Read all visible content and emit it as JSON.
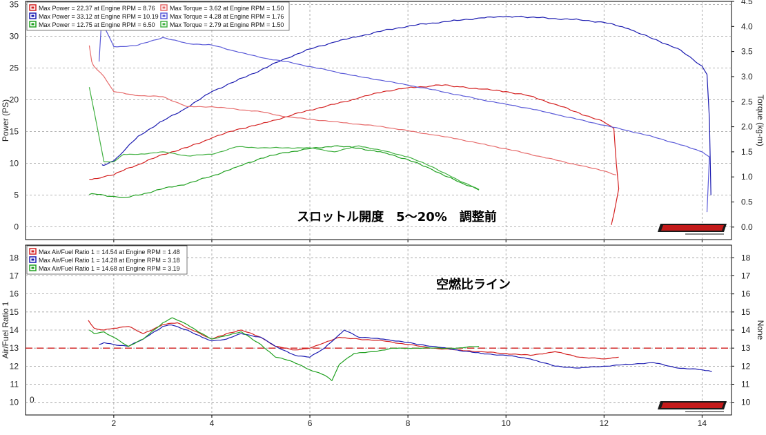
{
  "chart_data": [
    {
      "type": "line",
      "annotation": "スロットル開度　5～20%　調整前",
      "ylabel_left": "Power (PS)",
      "ylabel_right": "Torque (kg-m)",
      "xlim": [
        0.2,
        14.6
      ],
      "ylim_left": [
        -2,
        35.5
      ],
      "ylim_right": [
        -0.25,
        4.5
      ],
      "grid": true,
      "legend_position": "top-left",
      "x_ticks": [
        2,
        4,
        6,
        8,
        10,
        12,
        14
      ],
      "y_ticks_left": [
        0,
        5,
        10,
        15,
        20,
        25,
        30,
        35
      ],
      "y_ticks_right": [
        0,
        0.5,
        1.0,
        1.5,
        2.0,
        2.5,
        3.0,
        3.5,
        4.0,
        4.5
      ],
      "legend": [
        "Max Power = 22.37 at Engine RPM = 8.76",
        "Max Power = 33.12 at Engine RPM = 10.19",
        "Max Power = 12.75 at Engine RPM = 6.50",
        "Max Torque = 3.62 at Engine RPM = 1.50",
        "Max Torque = 4.28 at Engine RPM = 1.76",
        "Max Torque = 2.79 at Engine RPM = 1.50"
      ],
      "series": [
        {
          "color": "#d42020",
          "axis": "left",
          "style": "power",
          "x": [
            1.5,
            1.6,
            1.8,
            2.0,
            2.2,
            2.5,
            3.0,
            3.5,
            4.0,
            4.5,
            5.0,
            5.5,
            6.0,
            6.5,
            7.0,
            7.5,
            8.0,
            8.5,
            8.76,
            9.0,
            9.5,
            10.0,
            10.5,
            11.0,
            11.5,
            12.0,
            12.2,
            12.25,
            12.3,
            12.2,
            12.15
          ],
          "y": [
            7.5,
            7.6,
            7.9,
            8.2,
            8.9,
            9.8,
            11.4,
            12.5,
            14.0,
            15.3,
            16.2,
            17.3,
            18.4,
            19.3,
            20.3,
            21.3,
            21.9,
            22.2,
            22.37,
            22.1,
            21.7,
            21.3,
            20.6,
            19.3,
            17.9,
            16.5,
            15.5,
            10,
            6,
            2,
            0.3
          ]
        },
        {
          "color": "#1a1ab0",
          "axis": "left",
          "style": "power",
          "x": [
            1.76,
            1.8,
            2.0,
            2.2,
            2.5,
            3.0,
            3.5,
            4.0,
            4.5,
            5.0,
            5.5,
            6.0,
            6.5,
            7.0,
            7.5,
            8.0,
            8.5,
            9.0,
            9.5,
            10.0,
            10.19,
            10.5,
            11.0,
            11.5,
            12.0,
            12.5,
            13.0,
            13.5,
            14.0,
            14.1,
            14.15,
            14.18
          ],
          "y": [
            9.8,
            9.7,
            10.4,
            11.9,
            14.3,
            16.7,
            18.8,
            21.3,
            23.0,
            24.7,
            26.5,
            28.0,
            29.1,
            30.0,
            30.9,
            31.6,
            32.1,
            32.5,
            32.9,
            33.1,
            33.12,
            33.0,
            32.8,
            32.6,
            32.2,
            31.2,
            29.6,
            28.1,
            25.3,
            24,
            17,
            5
          ]
        },
        {
          "color": "#20a020",
          "axis": "left",
          "style": "power",
          "x": [
            1.5,
            1.6,
            1.8,
            2.0,
            2.2,
            2.5,
            3.0,
            3.5,
            4.0,
            4.5,
            5.0,
            5.5,
            6.0,
            6.5,
            7.0,
            7.5,
            8.0,
            8.5,
            9.0,
            9.45
          ],
          "y": [
            5.1,
            5.2,
            5.0,
            4.8,
            4.6,
            5.0,
            6.0,
            6.8,
            8.0,
            9.4,
            10.8,
            11.7,
            12.3,
            12.75,
            12.4,
            11.7,
            10.6,
            9.0,
            7.2,
            5.8
          ]
        },
        {
          "color": "#e66a6a",
          "axis": "right",
          "style": "torque",
          "x": [
            1.5,
            1.55,
            1.6,
            1.8,
            2.0,
            2.5,
            3.0,
            3.5,
            4.0,
            4.5,
            5.0,
            5.5,
            6.0,
            6.5,
            7.0,
            7.5,
            8.0,
            8.5,
            9.0,
            9.5,
            10.0,
            10.5,
            11.0,
            11.5,
            12.0,
            12.25
          ],
          "y": [
            3.62,
            3.3,
            3.2,
            3.0,
            2.7,
            2.62,
            2.6,
            2.4,
            2.4,
            2.35,
            2.3,
            2.2,
            2.15,
            2.1,
            2.05,
            2.0,
            1.92,
            1.84,
            1.76,
            1.66,
            1.56,
            1.45,
            1.34,
            1.23,
            1.12,
            1.04
          ]
        },
        {
          "color": "#5a5ad8",
          "axis": "right",
          "style": "torque",
          "x": [
            1.7,
            1.76,
            1.8,
            2.0,
            2.2,
            2.5,
            3.0,
            3.5,
            4.0,
            4.5,
            5.0,
            5.5,
            6.0,
            6.5,
            7.0,
            7.5,
            8.0,
            8.5,
            9.0,
            9.5,
            10.0,
            10.5,
            11.0,
            11.5,
            12.0,
            12.5,
            13.0,
            13.5,
            14.0,
            14.15,
            14.1
          ],
          "y": [
            3.3,
            4.28,
            4.0,
            3.6,
            3.6,
            3.63,
            3.78,
            3.66,
            3.63,
            3.5,
            3.38,
            3.3,
            3.2,
            3.1,
            3.0,
            2.92,
            2.83,
            2.74,
            2.64,
            2.54,
            2.45,
            2.36,
            2.25,
            2.14,
            2.03,
            1.92,
            1.8,
            1.66,
            1.5,
            1.4,
            0.3
          ]
        },
        {
          "color": "#40b040",
          "axis": "right",
          "style": "torque",
          "x": [
            1.5,
            1.6,
            1.8,
            2.0,
            2.2,
            2.5,
            3.0,
            3.5,
            4.0,
            4.5,
            5.0,
            5.5,
            6.0,
            6.5,
            7.0,
            7.5,
            8.0,
            8.5,
            9.0,
            9.45
          ],
          "y": [
            2.79,
            2.3,
            1.3,
            1.3,
            1.45,
            1.45,
            1.5,
            1.42,
            1.45,
            1.6,
            1.58,
            1.58,
            1.58,
            1.5,
            1.62,
            1.52,
            1.4,
            1.2,
            0.95,
            0.75
          ]
        }
      ]
    },
    {
      "type": "line",
      "annotation": "空燃比ライン",
      "ylabel_left": "Air/Fuel Ratio 1",
      "ylabel_right": "None",
      "corner_label": "0",
      "xlim": [
        0.2,
        14.6
      ],
      "ylim": [
        9.3,
        18.7
      ],
      "grid": true,
      "legend_position": "top-left",
      "reference_line": 13.0,
      "x_ticks": [
        2,
        4,
        6,
        8,
        10,
        12,
        14
      ],
      "y_ticks": [
        10,
        11,
        12,
        13,
        14,
        15,
        16,
        17,
        18
      ],
      "legend": [
        "Max Air/Fuel Ratio 1 = 14.54 at Engine RPM = 1.48",
        "Max Air/Fuel Ratio 1 = 14.28 at Engine RPM = 3.18",
        "Max Air/Fuel Ratio 1 = 14.68 at Engine RPM = 3.19"
      ],
      "series": [
        {
          "color": "#d42020",
          "x": [
            1.48,
            1.6,
            1.8,
            2.0,
            2.3,
            2.6,
            3.0,
            3.3,
            3.6,
            4.0,
            4.3,
            4.6,
            5.0,
            5.3,
            5.7,
            6.0,
            6.3,
            6.6,
            7.0,
            7.5,
            8.0,
            8.5,
            9.0,
            9.5,
            10.0,
            10.5,
            11.0,
            11.5,
            12.0,
            12.3
          ],
          "y": [
            14.54,
            14.1,
            14.0,
            14.1,
            14.2,
            13.8,
            14.3,
            14.4,
            14.0,
            13.5,
            13.8,
            14.0,
            13.6,
            13.1,
            12.9,
            13.0,
            13.3,
            13.6,
            13.5,
            13.4,
            13.2,
            13.0,
            12.9,
            12.8,
            12.7,
            12.6,
            12.8,
            12.5,
            12.4,
            12.5
          ]
        },
        {
          "color": "#1a1ab0",
          "x": [
            1.7,
            1.8,
            2.0,
            2.3,
            2.6,
            3.0,
            3.18,
            3.5,
            3.8,
            4.0,
            4.3,
            4.6,
            5.0,
            5.3,
            5.7,
            6.0,
            6.3,
            6.7,
            7.0,
            7.5,
            8.0,
            8.5,
            9.0,
            9.5,
            10.0,
            10.5,
            11.0,
            11.5,
            12.0,
            12.5,
            13.0,
            13.5,
            14.0,
            14.2
          ],
          "y": [
            13.2,
            13.3,
            13.2,
            13.1,
            13.5,
            14.2,
            14.28,
            14.0,
            13.6,
            13.4,
            13.5,
            13.8,
            13.6,
            13.1,
            12.6,
            12.5,
            13.0,
            14.0,
            13.6,
            13.5,
            13.3,
            13.1,
            12.9,
            12.7,
            12.6,
            12.4,
            12.0,
            11.9,
            12.0,
            12.1,
            12.2,
            11.9,
            11.8,
            11.7
          ]
        },
        {
          "color": "#20a020",
          "x": [
            1.5,
            1.6,
            1.8,
            2.0,
            2.3,
            2.6,
            3.0,
            3.19,
            3.5,
            3.8,
            4.0,
            4.3,
            4.6,
            5.0,
            5.3,
            5.6,
            6.0,
            6.3,
            6.45,
            6.6,
            6.9,
            7.3,
            7.7,
            8.0,
            8.5,
            9.0,
            9.45
          ],
          "y": [
            14.0,
            13.8,
            13.9,
            13.6,
            13.1,
            13.5,
            14.4,
            14.68,
            14.3,
            13.8,
            13.5,
            13.7,
            13.9,
            13.2,
            12.5,
            12.3,
            11.8,
            11.5,
            11.2,
            12.1,
            12.7,
            12.8,
            13.0,
            13.0,
            13.0,
            13.0,
            13.1
          ]
        }
      ]
    }
  ]
}
